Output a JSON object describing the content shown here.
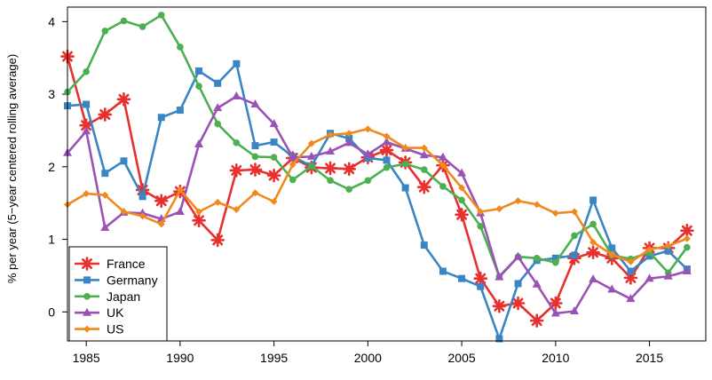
{
  "chart_data": {
    "type": "line",
    "ylabel": "% per year (5−year centered rolling average)",
    "xlim": [
      1984,
      2018
    ],
    "ylim": [
      -0.4,
      4.2
    ],
    "x_ticks": [
      1985,
      1990,
      1995,
      2000,
      2005,
      2010,
      2015
    ],
    "x_tick_labels": [
      "1985",
      "1990",
      "1995",
      "2000",
      "2005",
      "2010",
      "2015"
    ],
    "y_ticks": [
      0,
      1,
      2,
      3,
      4
    ],
    "y_tick_labels": [
      "0",
      "1",
      "2",
      "3",
      "4"
    ],
    "grid": false,
    "legend_position": "bottom-left",
    "x": [
      1984,
      1985,
      1986,
      1987,
      1988,
      1989,
      1990,
      1991,
      1992,
      1993,
      1994,
      1995,
      1996,
      1997,
      1998,
      1999,
      2000,
      2001,
      2002,
      2003,
      2004,
      2005,
      2006,
      2007,
      2008,
      2009,
      2010,
      2011,
      2012,
      2013,
      2014,
      2015,
      2016,
      2017
    ],
    "series": [
      {
        "name": "France",
        "color": "#e8302e",
        "marker": "star",
        "values": [
          3.52,
          2.57,
          2.72,
          2.93,
          1.68,
          1.53,
          1.66,
          1.26,
          0.99,
          1.95,
          1.96,
          1.88,
          2.12,
          1.99,
          1.98,
          1.97,
          2.13,
          2.23,
          2.06,
          1.72,
          2.02,
          1.34,
          0.46,
          0.08,
          0.12,
          -0.12,
          0.12,
          0.74,
          0.82,
          0.74,
          0.47,
          0.88,
          0.88,
          1.12
        ]
      },
      {
        "name": "Germany",
        "color": "#3a86c4",
        "marker": "square",
        "values": [
          2.84,
          2.86,
          1.91,
          2.08,
          1.59,
          2.68,
          2.78,
          3.32,
          3.15,
          3.42,
          2.29,
          2.34,
          2.14,
          2.01,
          2.46,
          2.39,
          2.12,
          2.09,
          1.71,
          0.92,
          0.56,
          0.46,
          0.35,
          -0.37,
          0.39,
          0.71,
          0.74,
          0.78,
          1.54,
          0.88,
          0.56,
          0.77,
          0.84,
          0.59
        ]
      },
      {
        "name": "Japan",
        "color": "#4cb050",
        "marker": "circle",
        "values": [
          3.03,
          3.31,
          3.87,
          4.01,
          3.93,
          4.09,
          3.65,
          3.11,
          2.59,
          2.33,
          2.14,
          2.13,
          1.82,
          2.01,
          1.81,
          1.69,
          1.81,
          1.99,
          2.04,
          1.96,
          1.73,
          1.54,
          1.18,
          0.49,
          0.76,
          0.74,
          0.68,
          1.05,
          1.21,
          0.78,
          0.73,
          0.82,
          0.54,
          0.89
        ]
      },
      {
        "name": "UK",
        "color": "#9b52b6",
        "marker": "triangle",
        "values": [
          2.19,
          2.49,
          1.16,
          1.37,
          1.36,
          1.28,
          1.38,
          2.31,
          2.81,
          2.97,
          2.86,
          2.59,
          2.13,
          2.14,
          2.21,
          2.33,
          2.17,
          2.34,
          2.25,
          2.16,
          2.13,
          1.91,
          1.36,
          0.48,
          0.76,
          0.38,
          -0.02,
          0.01,
          0.45,
          0.31,
          0.18,
          0.46,
          0.49,
          0.56
        ]
      },
      {
        "name": "US",
        "color": "#f08a1e",
        "marker": "diamond",
        "values": [
          1.48,
          1.63,
          1.61,
          1.38,
          1.32,
          1.21,
          1.68,
          1.38,
          1.51,
          1.41,
          1.64,
          1.52,
          2.03,
          2.32,
          2.44,
          2.46,
          2.52,
          2.42,
          2.26,
          2.26,
          2.02,
          1.71,
          1.38,
          1.42,
          1.53,
          1.48,
          1.36,
          1.38,
          0.96,
          0.79,
          0.69,
          0.86,
          0.91,
          1.01
        ]
      }
    ]
  }
}
